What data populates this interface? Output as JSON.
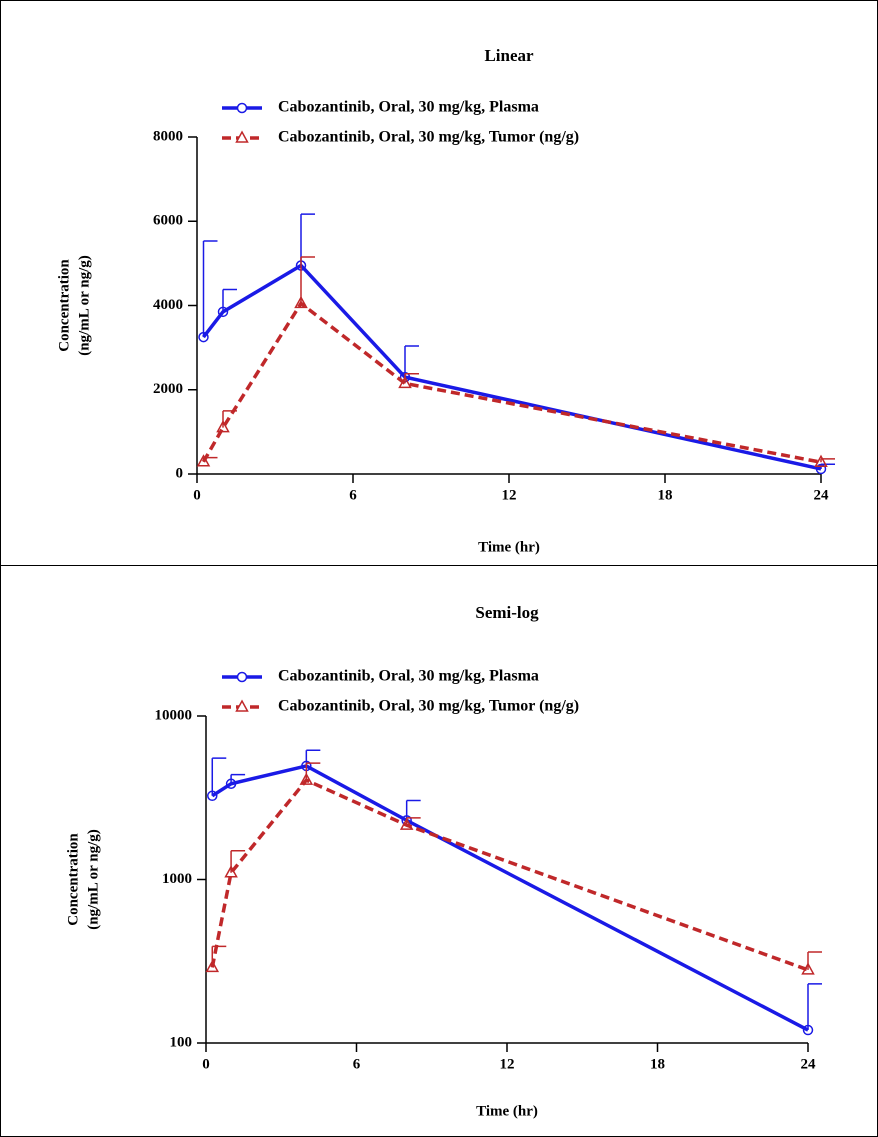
{
  "chart_data": [
    {
      "type": "line",
      "title": "Linear",
      "xlabel": "Time (hr)",
      "ylabel": [
        "Concentration",
        "(ng/mL or ng/g)"
      ],
      "x": [
        0.25,
        1,
        4,
        8,
        24
      ],
      "xlim": [
        0,
        24
      ],
      "xticks": [
        0,
        6,
        12,
        18,
        24
      ],
      "ylim": [
        0,
        8000
      ],
      "yticks": [
        0,
        2000,
        4000,
        6000,
        8000
      ],
      "log": false,
      "series": [
        {
          "name": "Cabozantinib, Oral, 30 mg/kg, Plasma",
          "color": "#1a1ae6",
          "dash": false,
          "marker": "circle",
          "values": [
            3250,
            3850,
            4950,
            2300,
            120
          ],
          "errors": [
            2280,
            530,
            1220,
            740,
            110
          ]
        },
        {
          "name": "Cabozantinib, Oral, 30 mg/kg, Tumor (ng/g)",
          "color": "#c0282a",
          "dash": true,
          "marker": "triangle",
          "values": [
            290,
            1100,
            4050,
            2150,
            280
          ],
          "errors": [
            100,
            400,
            1100,
            230,
            80
          ]
        }
      ]
    },
    {
      "type": "line",
      "title": "Semi-log",
      "xlabel": "Time (hr)",
      "ylabel": [
        "Concentration",
        "(ng/mL or ng/g)"
      ],
      "x": [
        0.25,
        1,
        4,
        8,
        24
      ],
      "xlim": [
        0,
        24
      ],
      "xticks": [
        0,
        6,
        12,
        18,
        24
      ],
      "ylim": [
        100,
        10000
      ],
      "yticks": [
        100,
        1000,
        10000
      ],
      "log": true,
      "series": [
        {
          "name": "Cabozantinib, Oral, 30 mg/kg, Plasma",
          "color": "#1a1ae6",
          "dash": false,
          "marker": "circle",
          "values": [
            3250,
            3850,
            4950,
            2300,
            120
          ],
          "errors": [
            2280,
            530,
            1220,
            740,
            110
          ]
        },
        {
          "name": "Cabozantinib, Oral, 30 mg/kg, Tumor (ng/g)",
          "color": "#c0282a",
          "dash": true,
          "marker": "triangle",
          "values": [
            290,
            1100,
            4050,
            2150,
            280
          ],
          "errors": [
            100,
            400,
            1100,
            230,
            80
          ]
        }
      ]
    }
  ]
}
